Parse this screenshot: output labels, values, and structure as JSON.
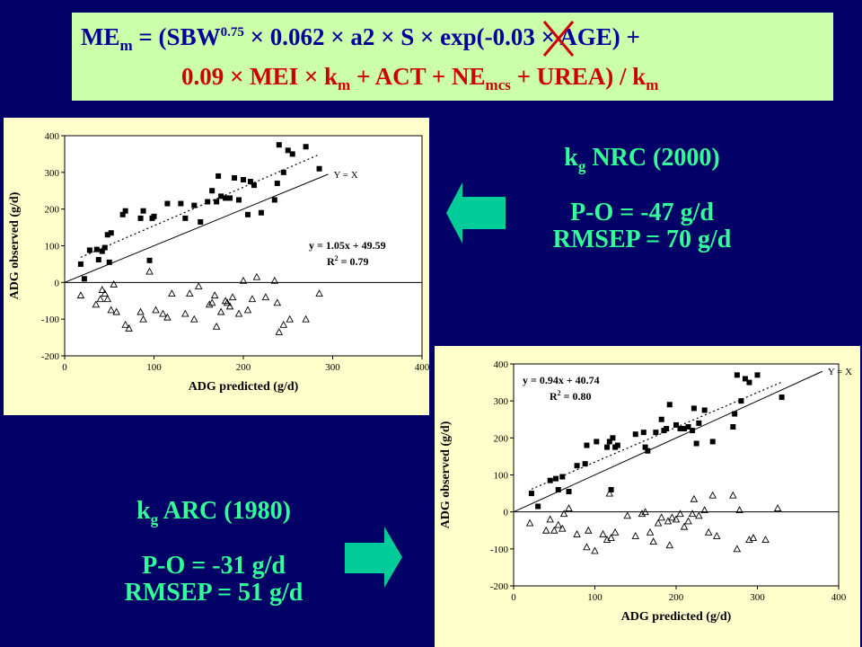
{
  "formula": {
    "line1_parts": [
      "ME",
      "m",
      " = (SBW",
      "0.75",
      " × 0.062 × a2 × ",
      "S",
      " × exp(-0.03 × AGE) +"
    ],
    "line2_parts": [
      "0.09 × MEI × k",
      "m",
      " + ACT + NE",
      "mcs",
      " + UREA) / k",
      "m"
    ],
    "struck_symbol_color": "#cc0000"
  },
  "panel_nrc": {
    "kg_label": "k",
    "kg_sub": "g",
    "source": " NRC (2000)",
    "po": "P-O = -47 g/d",
    "rmsep": "RMSEP = 70 g/d"
  },
  "panel_arc": {
    "kg_label": "k",
    "kg_sub": "g",
    "source": "  ARC (1980)",
    "po": "P-O = -31 g/d",
    "rmsep": "RMSEP = 51 g/d"
  },
  "colors": {
    "background": "#000066",
    "formula_box": "#ccffaa",
    "formula_text": "#000099",
    "info_text": "#33ff99",
    "arrow": "#00cc99",
    "panel": "#ffffcc"
  },
  "chart_data": [
    {
      "type": "scatter",
      "xlabel": "ADG predicted (g/d)",
      "ylabel": "ADG observed (g/d)",
      "xlim": [
        0,
        400
      ],
      "ylim": [
        -200,
        400
      ],
      "xticks": [
        0,
        100,
        200,
        300,
        400
      ],
      "yticks": [
        -200,
        -100,
        0,
        100,
        200,
        300,
        400
      ],
      "identity_label": "Y = X",
      "equation": "y = 1.05x + 49.59",
      "r2_label": "R",
      "r2_value": " = 0.79",
      "regression": {
        "slope": 1.05,
        "intercept": 49.59,
        "x_range": [
          18,
          285
        ]
      },
      "series": [
        {
          "marker": "filled-square",
          "points": [
            [
              18,
              50
            ],
            [
              22,
              10
            ],
            [
              28,
              88
            ],
            [
              36,
              90
            ],
            [
              38,
              62
            ],
            [
              42,
              85
            ],
            [
              45,
              95
            ],
            [
              48,
              130
            ],
            [
              50,
              55
            ],
            [
              52,
              135
            ],
            [
              65,
              185
            ],
            [
              68,
              195
            ],
            [
              85,
              175
            ],
            [
              88,
              195
            ],
            [
              95,
              60
            ],
            [
              98,
              175
            ],
            [
              100,
              180
            ],
            [
              115,
              215
            ],
            [
              130,
              215
            ],
            [
              135,
              175
            ],
            [
              145,
              210
            ],
            [
              152,
              165
            ],
            [
              160,
              220
            ],
            [
              165,
              250
            ],
            [
              170,
              220
            ],
            [
              172,
              290
            ],
            [
              175,
              235
            ],
            [
              180,
              230
            ],
            [
              185,
              230
            ],
            [
              190,
              285
            ],
            [
              195,
              225
            ],
            [
              200,
              280
            ],
            [
              205,
              185
            ],
            [
              208,
              275
            ],
            [
              212,
              265
            ],
            [
              220,
              190
            ],
            [
              235,
              225
            ],
            [
              238,
              270
            ],
            [
              240,
              375
            ],
            [
              245,
              300
            ],
            [
              250,
              360
            ],
            [
              255,
              350
            ],
            [
              270,
              370
            ],
            [
              285,
              310
            ]
          ]
        },
        {
          "marker": "open-triangle",
          "points": [
            [
              18,
              -35
            ],
            [
              35,
              -60
            ],
            [
              40,
              -45
            ],
            [
              42,
              -20
            ],
            [
              45,
              -30
            ],
            [
              48,
              -45
            ],
            [
              52,
              -75
            ],
            [
              55,
              -5
            ],
            [
              58,
              -80
            ],
            [
              68,
              -115
            ],
            [
              72,
              -125
            ],
            [
              85,
              -80
            ],
            [
              88,
              -100
            ],
            [
              95,
              30
            ],
            [
              102,
              -75
            ],
            [
              110,
              -85
            ],
            [
              115,
              -95
            ],
            [
              120,
              -30
            ],
            [
              135,
              -85
            ],
            [
              140,
              -30
            ],
            [
              145,
              -100
            ],
            [
              150,
              -10
            ],
            [
              162,
              -60
            ],
            [
              165,
              -55
            ],
            [
              168,
              -35
            ],
            [
              170,
              -120
            ],
            [
              175,
              -80
            ],
            [
              180,
              -50
            ],
            [
              182,
              -55
            ],
            [
              185,
              -65
            ],
            [
              188,
              -40
            ],
            [
              195,
              -85
            ],
            [
              200,
              5
            ],
            [
              205,
              -75
            ],
            [
              210,
              -45
            ],
            [
              215,
              15
            ],
            [
              225,
              -40
            ],
            [
              235,
              5
            ],
            [
              238,
              -55
            ],
            [
              240,
              -135
            ],
            [
              245,
              -115
            ],
            [
              252,
              -100
            ],
            [
              270,
              -100
            ],
            [
              285,
              -30
            ]
          ]
        }
      ]
    },
    {
      "type": "scatter",
      "xlabel": "ADG predicted (g/d)",
      "ylabel": "ADG observed (g/d)",
      "xlim": [
        0,
        400
      ],
      "ylim": [
        -200,
        400
      ],
      "xticks": [
        0,
        100,
        200,
        300,
        400
      ],
      "yticks": [
        -200,
        -100,
        0,
        100,
        200,
        300,
        400
      ],
      "identity_label": "Y = X",
      "equation": "y = 0.94x + 40.74",
      "r2_label": "R",
      "r2_value": " = 0.80",
      "regression": {
        "slope": 0.94,
        "intercept": 40.74,
        "x_range": [
          22,
          330
        ]
      },
      "series": [
        {
          "marker": "filled-square",
          "points": [
            [
              22,
              50
            ],
            [
              30,
              15
            ],
            [
              45,
              85
            ],
            [
              52,
              90
            ],
            [
              55,
              60
            ],
            [
              60,
              95
            ],
            [
              68,
              55
            ],
            [
              78,
              125
            ],
            [
              88,
              130
            ],
            [
              90,
              180
            ],
            [
              102,
              190
            ],
            [
              115,
              175
            ],
            [
              118,
              190
            ],
            [
              120,
              60
            ],
            [
              122,
              200
            ],
            [
              125,
              175
            ],
            [
              128,
              180
            ],
            [
              150,
              210
            ],
            [
              160,
              215
            ],
            [
              162,
              175
            ],
            [
              165,
              165
            ],
            [
              175,
              215
            ],
            [
              182,
              250
            ],
            [
              185,
              220
            ],
            [
              188,
              225
            ],
            [
              192,
              290
            ],
            [
              200,
              235
            ],
            [
              205,
              225
            ],
            [
              210,
              225
            ],
            [
              215,
              230
            ],
            [
              220,
              220
            ],
            [
              222,
              280
            ],
            [
              225,
              185
            ],
            [
              228,
              240
            ],
            [
              235,
              275
            ],
            [
              245,
              190
            ],
            [
              270,
              230
            ],
            [
              272,
              265
            ],
            [
              275,
              370
            ],
            [
              280,
              300
            ],
            [
              285,
              360
            ],
            [
              290,
              350
            ],
            [
              300,
              370
            ],
            [
              330,
              310
            ]
          ]
        },
        {
          "marker": "open-triangle",
          "points": [
            [
              20,
              -30
            ],
            [
              40,
              -50
            ],
            [
              45,
              -20
            ],
            [
              50,
              -50
            ],
            [
              55,
              -35
            ],
            [
              60,
              -45
            ],
            [
              62,
              -5
            ],
            [
              68,
              10
            ],
            [
              78,
              -60
            ],
            [
              90,
              -95
            ],
            [
              92,
              -50
            ],
            [
              100,
              -105
            ],
            [
              110,
              -60
            ],
            [
              115,
              -75
            ],
            [
              118,
              50
            ],
            [
              120,
              -70
            ],
            [
              125,
              -55
            ],
            [
              140,
              -10
            ],
            [
              150,
              -65
            ],
            [
              158,
              -5
            ],
            [
              162,
              0
            ],
            [
              168,
              -55
            ],
            [
              172,
              -80
            ],
            [
              178,
              -30
            ],
            [
              182,
              -15
            ],
            [
              190,
              -25
            ],
            [
              192,
              -90
            ],
            [
              195,
              -15
            ],
            [
              200,
              -20
            ],
            [
              205,
              -5
            ],
            [
              210,
              -40
            ],
            [
              215,
              -25
            ],
            [
              220,
              -5
            ],
            [
              222,
              35
            ],
            [
              228,
              -10
            ],
            [
              235,
              5
            ],
            [
              240,
              -55
            ],
            [
              245,
              45
            ],
            [
              250,
              -65
            ],
            [
              270,
              45
            ],
            [
              275,
              -100
            ],
            [
              278,
              5
            ],
            [
              290,
              -75
            ],
            [
              295,
              -70
            ],
            [
              310,
              -75
            ],
            [
              325,
              10
            ]
          ]
        }
      ]
    }
  ]
}
